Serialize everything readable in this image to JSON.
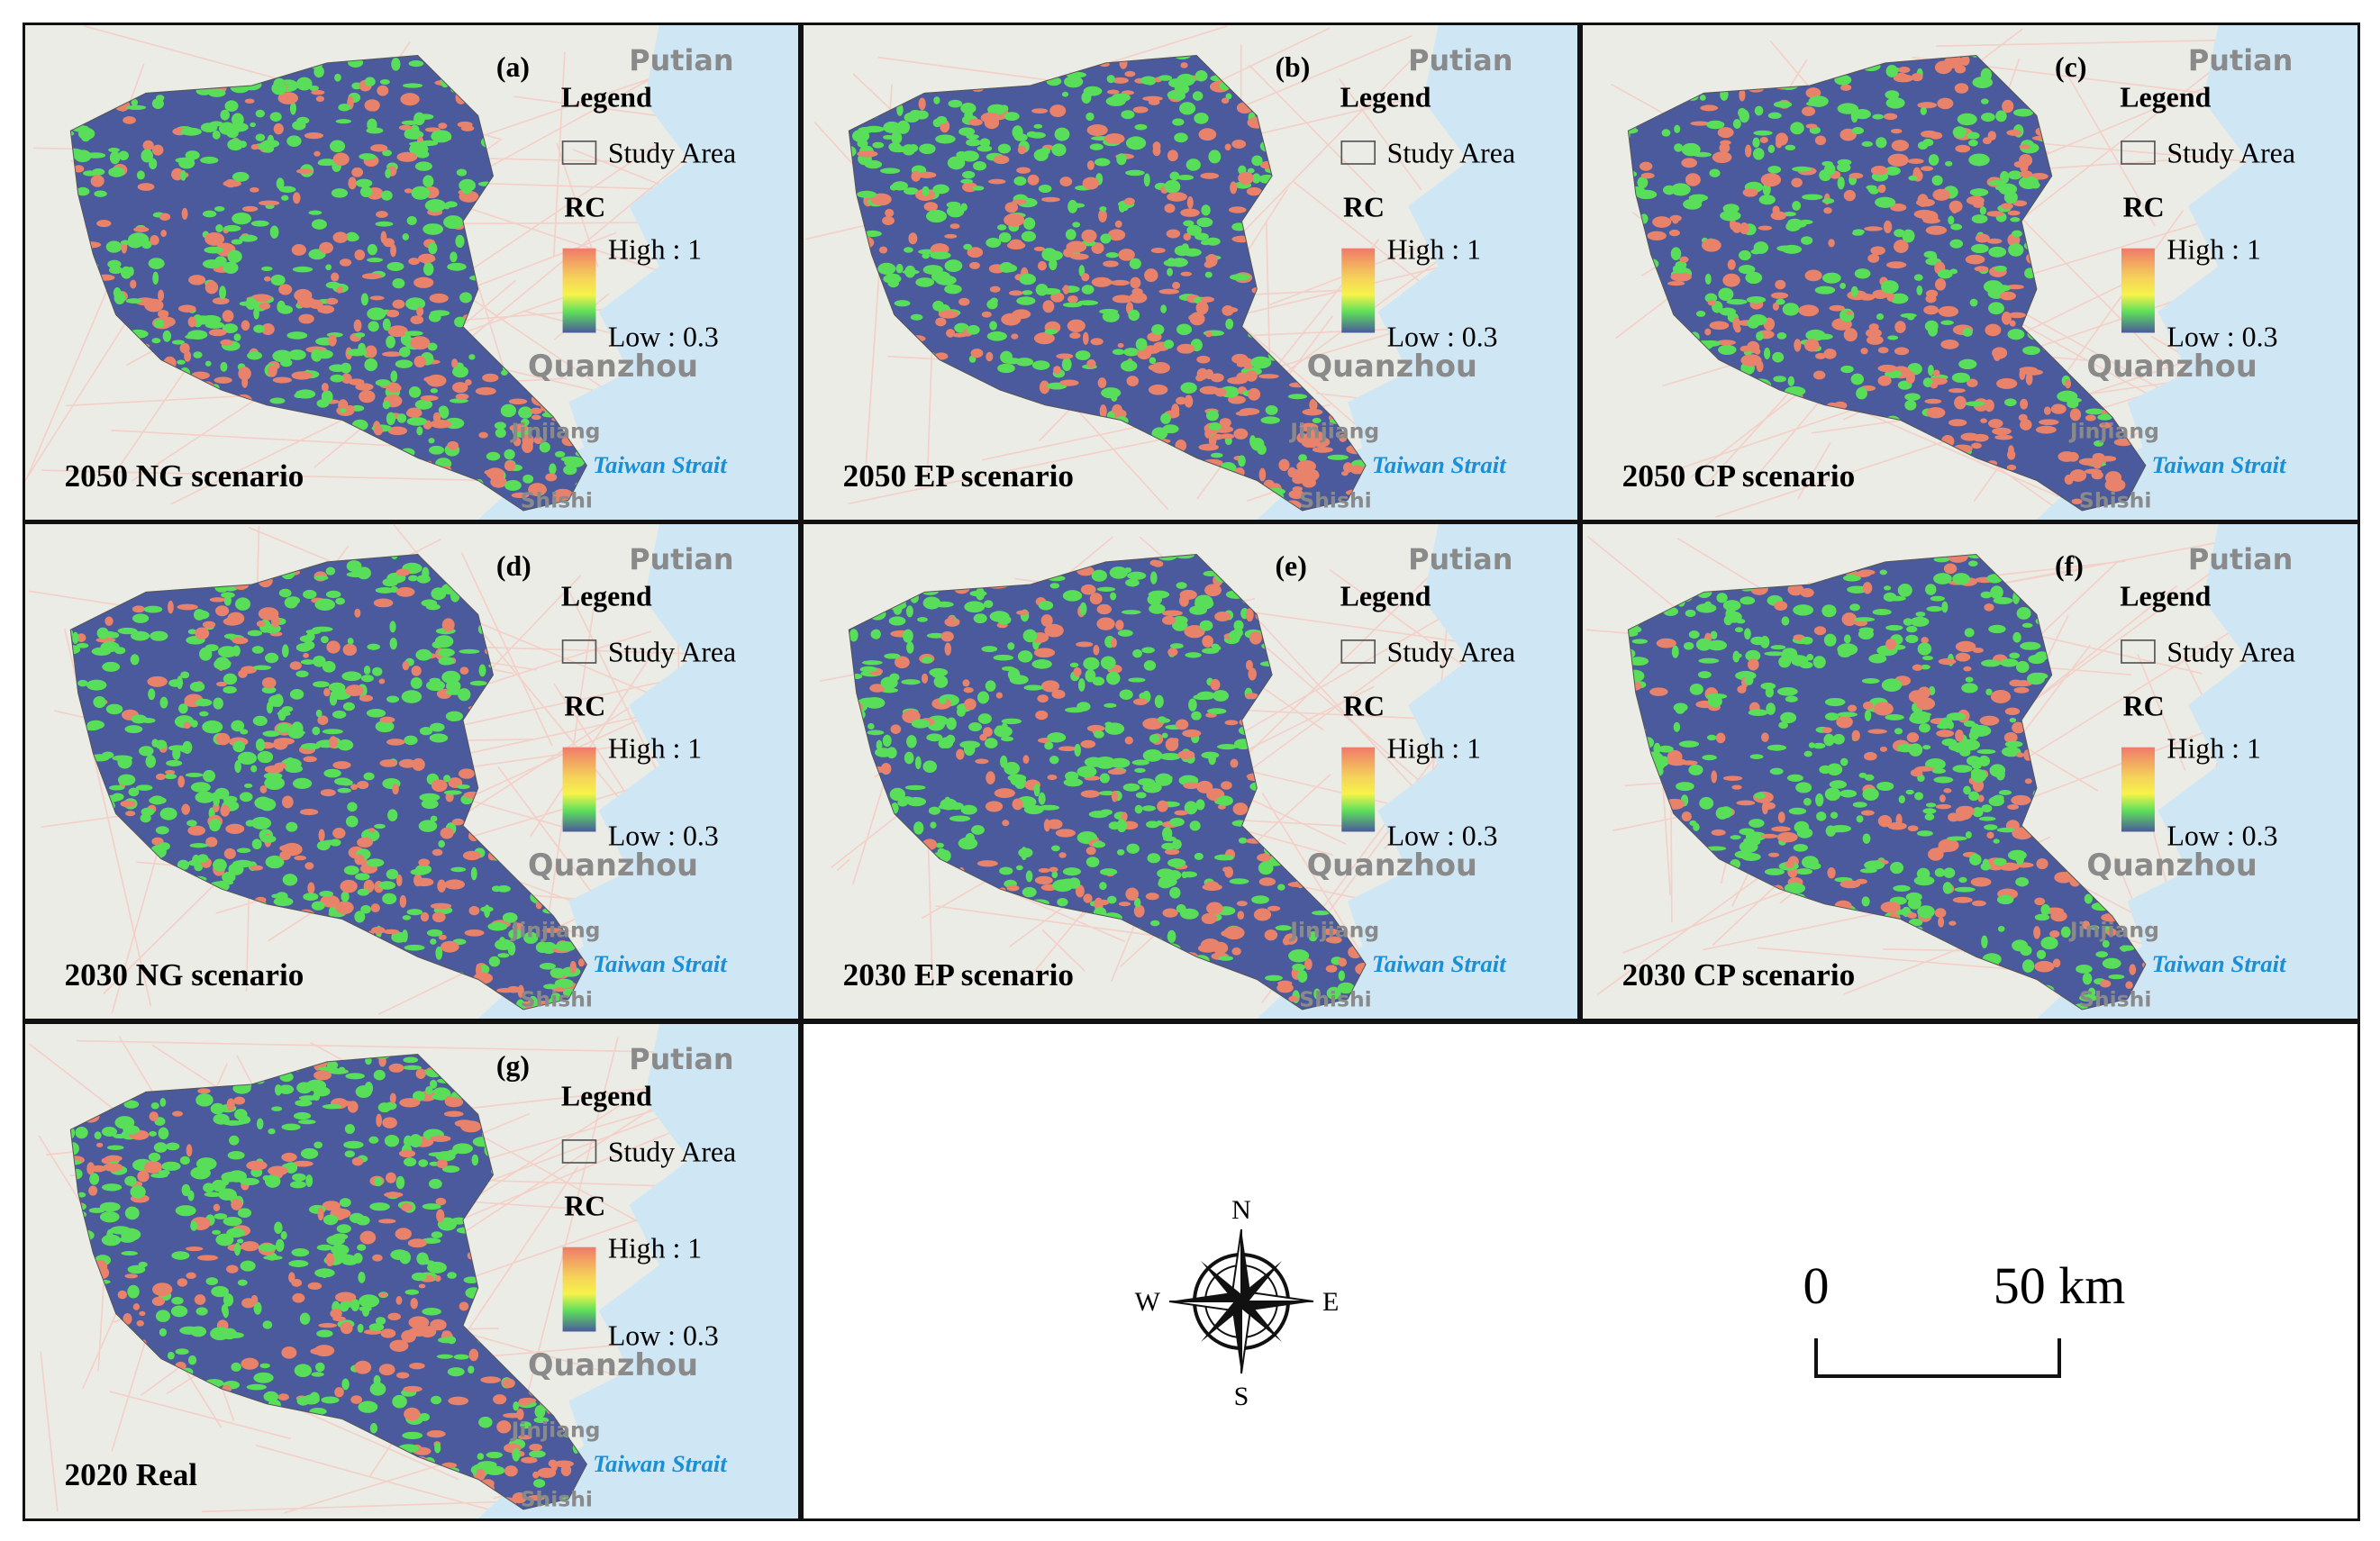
{
  "panels": [
    {
      "label": "(a)",
      "title": "2050 NG scenario",
      "legend": {
        "title": "Legend",
        "study_area": "Study Area",
        "rc": "RC",
        "high": "High : 1",
        "low": "Low : 0.3"
      },
      "places": {
        "putian": "Putian",
        "quanzhou": "Quanzhou",
        "jinjiang": "Jinjiang",
        "shishi": "Shishi",
        "strait": "Taiwan Strait"
      }
    },
    {
      "label": "(b)",
      "title": "2050 EP scenario",
      "legend": {
        "title": "Legend",
        "study_area": "Study Area",
        "rc": "RC",
        "high": "High : 1",
        "low": "Low : 0.3"
      },
      "places": {
        "putian": "Putian",
        "quanzhou": "Quanzhou",
        "jinjiang": "Jinjiang",
        "shishi": "Shishi",
        "strait": "Taiwan Strait"
      }
    },
    {
      "label": "(c)",
      "title": "2050 CP scenario",
      "legend": {
        "title": "Legend",
        "study_area": "Study Area",
        "rc": "RC",
        "high": "High : 1",
        "low": "Low : 0.3"
      },
      "places": {
        "putian": "Putian",
        "quanzhou": "Quanzhou",
        "jinjiang": "Jinjiang",
        "shishi": "Shishi",
        "strait": "Taiwan Strait"
      }
    },
    {
      "label": "(d)",
      "title": "2030 NG scenario",
      "legend": {
        "title": "Legend",
        "study_area": "Study Area",
        "rc": "RC",
        "high": "High : 1",
        "low": "Low : 0.3"
      },
      "places": {
        "putian": "Putian",
        "quanzhou": "Quanzhou",
        "jinjiang": "Jinjiang",
        "shishi": "Shishi",
        "strait": "Taiwan Strait"
      }
    },
    {
      "label": "(e)",
      "title": "2030 EP scenario",
      "legend": {
        "title": "Legend",
        "study_area": "Study Area",
        "rc": "RC",
        "high": "High : 1",
        "low": "Low : 0.3"
      },
      "places": {
        "putian": "Putian",
        "quanzhou": "Quanzhou",
        "jinjiang": "Jinjiang",
        "shishi": "Shishi",
        "strait": "Taiwan Strait"
      }
    },
    {
      "label": "(f)",
      "title": "2030 CP scenario",
      "legend": {
        "title": "Legend",
        "study_area": "Study Area",
        "rc": "RC",
        "high": "High : 1",
        "low": "Low : 0.3"
      },
      "places": {
        "putian": "Putian",
        "quanzhou": "Quanzhou",
        "jinjiang": "Jinjiang",
        "shishi": "Shishi",
        "strait": "Taiwan Strait"
      }
    },
    {
      "label": "(g)",
      "title": "2020 Real",
      "legend": {
        "title": "Legend",
        "study_area": "Study Area",
        "rc": "RC",
        "high": "High : 1",
        "low": "Low : 0.3"
      },
      "places": {
        "putian": "Putian",
        "quanzhou": "Quanzhou",
        "jinjiang": "Jinjiang",
        "shishi": "Shishi",
        "strait": "Taiwan Strait"
      }
    }
  ],
  "compass": {
    "n": "N",
    "s": "S",
    "e": "E",
    "w": "W"
  },
  "scale_bar": {
    "start": "0",
    "end": "50 km"
  }
}
